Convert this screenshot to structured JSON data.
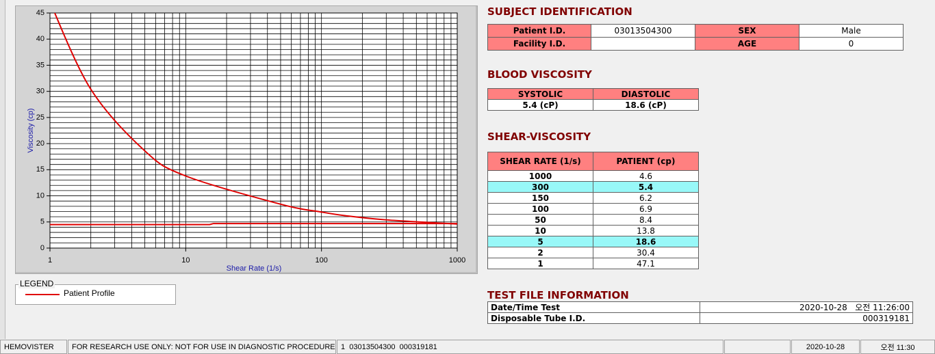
{
  "chart_data": {
    "type": "line",
    "xlabel": "Shear Rate (1/s)",
    "ylabel": "Viscosity (cp)",
    "xscale": "log",
    "xlim": [
      1,
      1000
    ],
    "ylim": [
      0,
      45
    ],
    "xticks": [
      1,
      10,
      100,
      1000
    ],
    "yticks": [
      0,
      5,
      10,
      15,
      20,
      25,
      30,
      35,
      40,
      45
    ],
    "xgrid": [
      1,
      2,
      3,
      4,
      5,
      6,
      7,
      8,
      9,
      10,
      20,
      30,
      40,
      50,
      60,
      70,
      80,
      90,
      100,
      200,
      300,
      400,
      500,
      600,
      700,
      800,
      900,
      1000
    ],
    "ygrid": [
      0,
      1,
      2,
      3,
      4,
      5,
      6,
      7,
      8,
      9,
      10,
      11,
      12,
      13,
      14,
      15,
      16,
      17,
      18,
      19,
      20,
      21,
      22,
      23,
      24,
      25,
      26,
      27,
      28,
      29,
      30,
      31,
      32,
      33,
      34,
      35,
      36,
      37,
      38,
      39,
      40,
      41,
      42,
      43,
      44,
      45
    ],
    "grid": true,
    "series": [
      {
        "name": "Patient Profile",
        "color": "#e00000",
        "x": [
          1,
          2,
          5,
          10,
          50,
          100,
          150,
          300,
          1000
        ],
        "values": [
          47.1,
          30.4,
          18.6,
          13.8,
          8.4,
          6.9,
          6.2,
          5.4,
          4.6
        ]
      },
      {
        "color": "#e00000",
        "x": [
          1,
          15,
          16,
          1000
        ],
        "values": [
          4.5,
          4.5,
          4.7,
          4.7
        ]
      }
    ],
    "legend_title": "LEGEND"
  },
  "subject_identification": {
    "title": "SUBJECT IDENTIFICATION",
    "fields": [
      {
        "label": "Patient I.D.",
        "value": "03013504300"
      },
      {
        "label": "SEX",
        "value": "Male"
      },
      {
        "label": "Facility I.D."
      },
      {
        "label": "AGE",
        "value": 0
      }
    ]
  },
  "blood_viscosity": {
    "title": "BLOOD VISCOSITY",
    "headers": [
      "SYSTOLIC",
      "DIASTOLIC"
    ],
    "values": [
      "5.4 (cP)",
      "18.6 (cP)"
    ]
  },
  "shear_viscosity": {
    "title": "SHEAR-VISCOSITY",
    "headers": [
      "SHEAR RATE (1/s)",
      "PATIENT (cp)"
    ],
    "rows": [
      {
        "shear_rate": 1000,
        "patient": 4.6
      },
      {
        "shear_rate": 300,
        "patient": 5.4,
        "highlight": true
      },
      {
        "shear_rate": 150,
        "patient": 6.2
      },
      {
        "shear_rate": 100,
        "patient": 6.9
      },
      {
        "shear_rate": 50,
        "patient": 8.4
      },
      {
        "shear_rate": 10,
        "patient": 13.8
      },
      {
        "shear_rate": 5,
        "patient": 18.6,
        "highlight": true
      },
      {
        "shear_rate": 2,
        "patient": 30.4
      },
      {
        "shear_rate": 1,
        "patient": 47.1
      }
    ]
  },
  "test_file_information": {
    "title": "TEST FILE INFORMATION",
    "rows": [
      {
        "label": "Date/Time Test",
        "value": "2020-10-28   오전 11:26:00"
      },
      {
        "label": "Disposable Tube I.D.",
        "value": "000319181"
      }
    ]
  },
  "status_bar": [
    "HEMOVISTER",
    "FOR RESEARCH USE ONLY: NOT FOR USE IN DIAGNOSTIC PROCEDURES",
    "1  03013504300  000319181",
    "2020-10-28",
    "오전 11:30"
  ]
}
